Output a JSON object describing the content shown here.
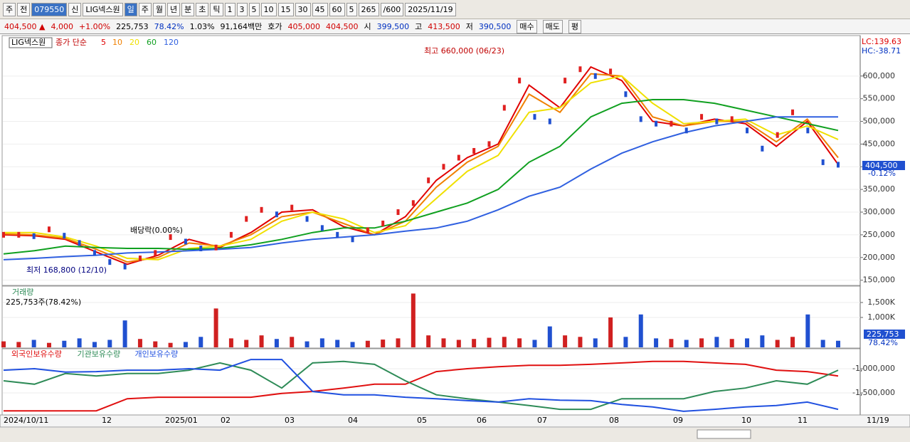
{
  "toolbar": {
    "items": [
      "주",
      "전",
      "079550",
      "신",
      "LIG넥스원",
      "일",
      "주",
      "월",
      "년",
      "분",
      "초",
      "틱",
      "1",
      "3",
      "5",
      "10",
      "15",
      "30",
      "45",
      "60",
      "5",
      "265",
      "/600",
      "2025/11/19"
    ]
  },
  "infobar": {
    "items": [
      "404,500 ▲",
      "4,000",
      "+1.00%",
      "225,753",
      "78.42%",
      "1.03%",
      "91,164백만",
      "호가",
      "405,000",
      "404,500",
      "시",
      "399,500",
      "고",
      "413,500",
      "저",
      "390,500",
      "매수",
      "매도",
      "평"
    ]
  },
  "x_labels": [
    "2024/10/11",
    "12",
    "2025/01",
    "02",
    "03",
    "04",
    "05",
    "06",
    "07",
    "08",
    "09",
    "10",
    "11"
  ],
  "last_date": "11/19",
  "chart_data": [
    {
      "type": "line",
      "title": "LIG넥스원",
      "subtitle": "종가 단순",
      "values": [
        250000,
        250000,
        247000,
        262000,
        248000,
        232000,
        210000,
        190000,
        180000,
        198000,
        210000,
        245000,
        235000,
        220000,
        222000,
        250000,
        285000,
        305000,
        295000,
        310000,
        285000,
        265000,
        250000,
        240000,
        260000,
        275000,
        300000,
        320000,
        370000,
        400000,
        420000,
        435000,
        450000,
        530000,
        590000,
        510000,
        500000,
        590000,
        615000,
        600000,
        610000,
        560000,
        505000,
        495000,
        495000,
        480000,
        510000,
        500000,
        505000,
        480000,
        440000,
        470000,
        520000,
        480000,
        410000,
        404500
      ],
      "color": "#c00000",
      "series": [
        {
          "name": "5",
          "color": "#e00000",
          "values": [
            250000,
            248000,
            240000,
            212000,
            185000,
            205000,
            240000,
            222000,
            255000,
            300000,
            305000,
            268000,
            250000,
            290000,
            370000,
            420000,
            450000,
            580000,
            530000,
            620000,
            590000,
            500000,
            490000,
            505000,
            495000,
            445000,
            500000,
            405000
          ]
        },
        {
          "name": "10",
          "color": "#f08000",
          "values": [
            252000,
            250000,
            242000,
            218000,
            190000,
            200000,
            232000,
            225000,
            250000,
            290000,
            300000,
            275000,
            250000,
            280000,
            355000,
            410000,
            445000,
            560000,
            520000,
            605000,
            600000,
            510000,
            490000,
            500000,
            500000,
            455000,
            505000,
            420000
          ]
        },
        {
          "name": "20",
          "color": "#f0e000",
          "values": [
            255000,
            255000,
            245000,
            225000,
            198000,
            195000,
            220000,
            225000,
            240000,
            280000,
            300000,
            285000,
            255000,
            270000,
            330000,
            390000,
            425000,
            520000,
            530000,
            585000,
            600000,
            540000,
            495000,
            500000,
            505000,
            470000,
            490000,
            460000
          ]
        },
        {
          "name": "60",
          "color": "#10a020",
          "values": [
            208000,
            215000,
            225000,
            222000,
            220000,
            220000,
            218000,
            220000,
            228000,
            240000,
            255000,
            265000,
            265000,
            280000,
            300000,
            320000,
            350000,
            410000,
            445000,
            510000,
            540000,
            548000,
            548000,
            540000,
            525000,
            510000,
            495000,
            480000
          ]
        },
        {
          "name": "120",
          "color": "#3060e0",
          "values": [
            195000,
            198000,
            202000,
            205000,
            210000,
            212000,
            215000,
            218000,
            222000,
            232000,
            240000,
            245000,
            250000,
            258000,
            265000,
            280000,
            305000,
            335000,
            355000,
            395000,
            430000,
            455000,
            475000,
            490000,
            500000,
            510000,
            510000,
            510000
          ]
        }
      ],
      "ylim": [
        140000,
        686000
      ],
      "yticks": [
        {
          "value": 150000,
          "label": "150,000"
        },
        {
          "value": 200000,
          "label": "200,000"
        },
        {
          "value": 250000,
          "label": "250,000"
        },
        {
          "value": 300000,
          "label": "300,000"
        },
        {
          "value": 350000,
          "label": "350,000"
        },
        {
          "value": 400000,
          "label": "400,000"
        },
        {
          "value": 450000,
          "label": "450,000"
        },
        {
          "value": 500000,
          "label": "500,000"
        },
        {
          "value": 550000,
          "label": "550,000"
        },
        {
          "value": 600000,
          "label": "600,000"
        }
      ],
      "annotations": [
        "최고 660,000 (06/23)",
        "최저 168,800 (12/10)",
        "배당락(0.00%)"
      ],
      "last_label": "404,500",
      "last_change": "-0.12%",
      "indicators": [
        "LC:139.63",
        "HC:-38.71"
      ]
    },
    {
      "type": "bar",
      "title": "거래량",
      "subtitle": "225,753주(78.42%)",
      "values": [
        200000,
        180000,
        250000,
        150000,
        220000,
        300000,
        180000,
        250000,
        900000,
        280000,
        200000,
        150000,
        180000,
        350000,
        1300000,
        300000,
        250000,
        400000,
        280000,
        350000,
        200000,
        300000,
        250000,
        180000,
        220000,
        260000,
        300000,
        1800000,
        400000,
        300000,
        250000,
        280000,
        320000,
        350000,
        300000,
        250000,
        700000,
        400000,
        350000,
        300000,
        1000000,
        350000,
        1100000,
        300000,
        280000,
        250000,
        300000,
        350000,
        280000,
        300000,
        400000,
        250000,
        350000,
        1100000,
        250000,
        220000
      ],
      "up_color": "#d02020",
      "down_color": "#2050d0",
      "ylim": [
        0,
        2000000
      ],
      "yticks": [
        {
          "value": 1000000,
          "label": "1,000K"
        },
        {
          "value": 1500000,
          "label": "1,500K"
        }
      ],
      "last_label": "225,753",
      "last_pct": "78.42%"
    },
    {
      "type": "line",
      "series": [
        {
          "name": "외국인보유수량",
          "color": "#e01010",
          "values": [
            -1870000,
            -1870000,
            -1870000,
            -1870000,
            -1620000,
            -1590000,
            -1590000,
            -1590000,
            -1590000,
            -1510000,
            -1470000,
            -1400000,
            -1320000,
            -1320000,
            -1060000,
            -1000000,
            -960000,
            -930000,
            -930000,
            -910000,
            -880000,
            -850000,
            -850000,
            -880000,
            -910000,
            -1030000,
            -1060000,
            -1150000
          ]
        },
        {
          "name": "기관보유수량",
          "color": "#2e8b57",
          "values": [
            -1250000,
            -1320000,
            -1100000,
            -1150000,
            -1100000,
            -1100000,
            -1030000,
            -880000,
            -1030000,
            -1400000,
            -880000,
            -850000,
            -910000,
            -1250000,
            -1540000,
            -1620000,
            -1690000,
            -1760000,
            -1840000,
            -1840000,
            -1620000,
            -1620000,
            -1620000,
            -1470000,
            -1400000,
            -1250000,
            -1320000,
            -1030000
          ]
        },
        {
          "name": "개인보유수량",
          "color": "#2050e0",
          "values": [
            -1030000,
            -1000000,
            -1070000,
            -1060000,
            -1030000,
            -1030000,
            -1000000,
            -1030000,
            -810000,
            -810000,
            -1470000,
            -1540000,
            -1540000,
            -1590000,
            -1620000,
            -1660000,
            -1690000,
            -1620000,
            -1650000,
            -1660000,
            -1740000,
            -1790000,
            -1880000,
            -1840000,
            -1790000,
            -1760000,
            -1690000,
            -1840000
          ]
        }
      ],
      "ylim": [
        -1941000,
        -617000
      ],
      "yticks": [
        {
          "value": -1500000,
          "label": "-1,500,000"
        },
        {
          "value": -1000000,
          "label": "-1,000,000"
        }
      ]
    }
  ]
}
